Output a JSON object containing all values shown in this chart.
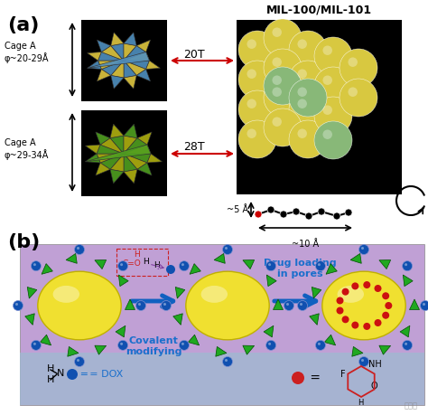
{
  "fig_width": 4.74,
  "fig_height": 4.59,
  "dpi": 100,
  "bg_color": "#ffffff",
  "panel_a_label": "(a)",
  "panel_b_label": "(b)",
  "cage_a1_label": "Cage A\nφ~20-29Å",
  "cage_a2_label": "Cage A\nφ~29-34Å",
  "label_20T": "20T",
  "label_28T": "28T",
  "mil_title": "MIL-100/MIL-101",
  "dim1_label": "~5 Å",
  "dim2_label": "~10 Å",
  "arrow_color": "#cc0000",
  "text_color_blue": "#1a6fcc",
  "covalent_label": "Covalent\nmodifying",
  "drug_label": "Drug loading\nin pores",
  "dox_label": "= DOX",
  "panel_b_bg_top": "#c8a0d8",
  "panel_b_bg_bottom": "#a8c8e8",
  "yellow_sphere": "#f0e040",
  "green_tetra": "#30b030",
  "blue_circle": "#2060c0",
  "red_dot": "#cc2020",
  "watermark": "学术堂"
}
